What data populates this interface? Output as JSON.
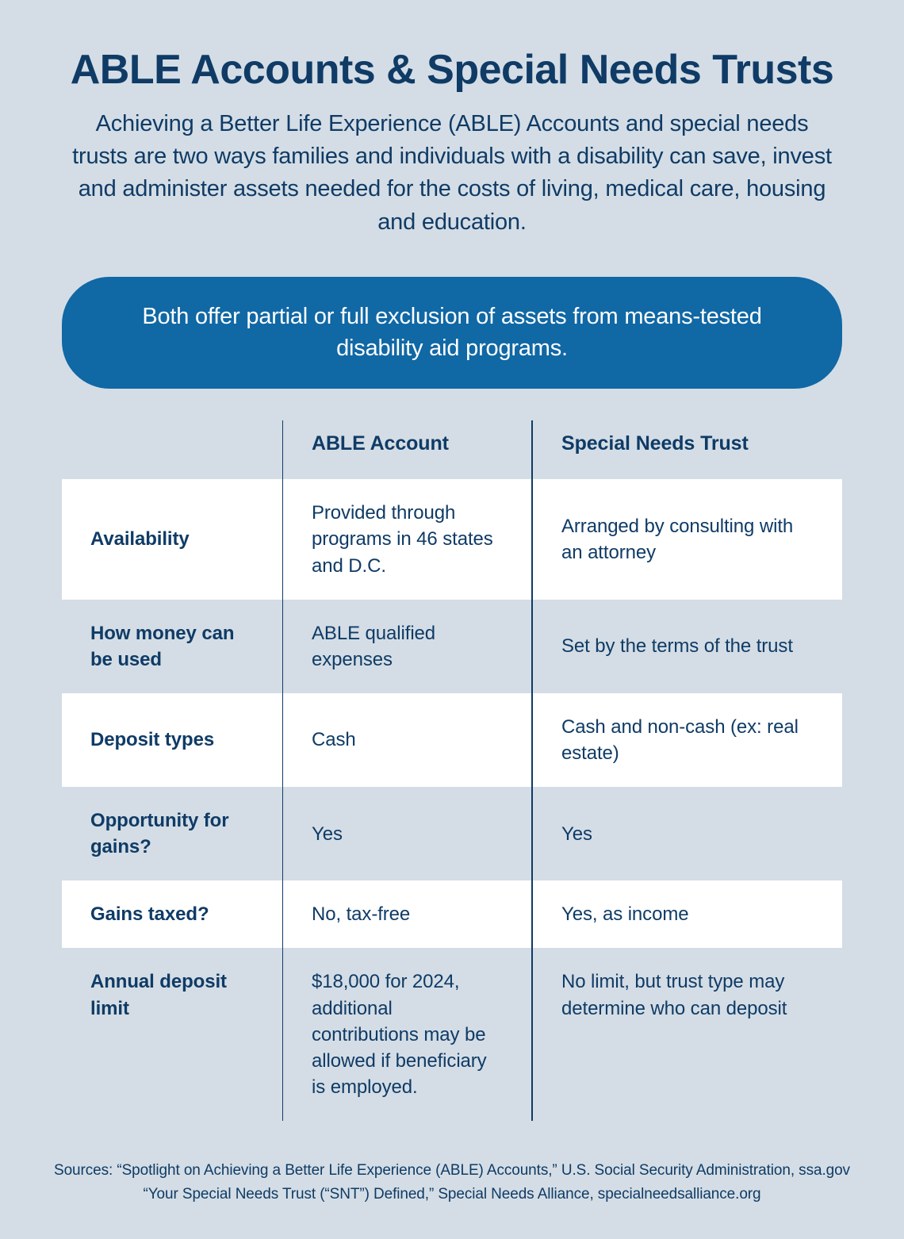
{
  "header": {
    "title": "ABLE Accounts & Special Needs Trusts",
    "subtitle": "Achieving a Better Life Experience (ABLE) Accounts and special needs trusts are two ways families and individuals with a disability can save, invest and administer assets needed for the costs of living, medical care, housing and education."
  },
  "pill": {
    "text": "Both offer partial or full exclusion of assets from means-tested disability aid programs.",
    "background_color": "#1068a5",
    "text_color": "#ffffff"
  },
  "table": {
    "col1_header": "ABLE Account",
    "col2_header": "Special Needs Trust",
    "band_color": "#ffffff",
    "divider_color": "#0f3b66",
    "rows": [
      {
        "label": "Availability",
        "able": "Provided through programs in 46 states and D.C.",
        "snt": "Arranged by consulting with an attorney",
        "banded": true
      },
      {
        "label": "How money can be used",
        "able": "ABLE qualified expenses",
        "snt": "Set by the terms of the trust",
        "banded": false
      },
      {
        "label": "Deposit types",
        "able": "Cash",
        "snt": "Cash and non-cash (ex: real estate)",
        "banded": true
      },
      {
        "label": "Opportunity for gains?",
        "able": "Yes",
        "snt": "Yes",
        "banded": false
      },
      {
        "label": "Gains taxed?",
        "able": "No, tax-free",
        "snt": "Yes, as income",
        "banded": true
      },
      {
        "label": "Annual deposit limit",
        "able": "$18,000 for 2024, additional contributions may be allowed if beneficiary is employed.",
        "snt": "No limit, but trust type may determine who can deposit",
        "banded": false
      }
    ]
  },
  "sources": {
    "line1": "Sources: “Spotlight on Achieving a Better Life Experience (ABLE) Accounts,” U.S. Social Security Administration, ssa.gov",
    "line2": "“Your Special Needs Trust (“SNT”) Defined,” Special Needs Alliance, specialneedsalliance.org"
  },
  "colors": {
    "page_bg": "#d4dde5",
    "text": "#0f3b66"
  }
}
